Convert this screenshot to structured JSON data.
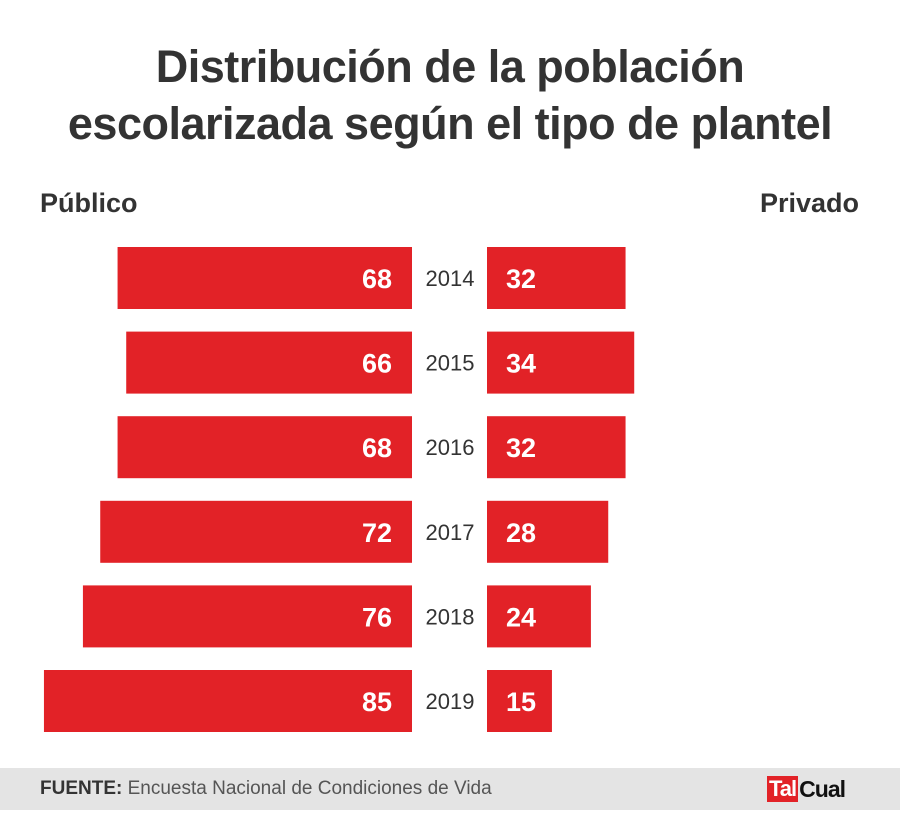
{
  "chart_data": {
    "type": "bar",
    "orientation": "horizontal-butterfly",
    "title": "Distribución de la población escolarizada según el tipo de plantel",
    "title_lines": [
      "Distribución de la población",
      "escolarizada según el tipo de plantel"
    ],
    "categories": [
      "2014",
      "2015",
      "2016",
      "2017",
      "2018",
      "2019"
    ],
    "series": [
      {
        "name": "Público",
        "side": "left",
        "values": [
          68,
          66,
          68,
          72,
          76,
          85
        ]
      },
      {
        "name": "Privado",
        "side": "right",
        "values": [
          32,
          34,
          32,
          28,
          24,
          15
        ]
      }
    ],
    "unit": "%",
    "xlabel": "",
    "ylabel": "",
    "grid": false,
    "legend": "none",
    "bar_color": "#e22227"
  },
  "labels": {
    "left": "Público",
    "right": "Privado"
  },
  "footer": {
    "source_label": "FUENTE:",
    "source_text": "Encuesta Nacional de Condiciones de Vida",
    "logo_part1": "Tal",
    "logo_part2": "Cual"
  },
  "colors": {
    "bar": "#e22227",
    "text": "#333333",
    "footer_bg": "#e4e4e4"
  }
}
